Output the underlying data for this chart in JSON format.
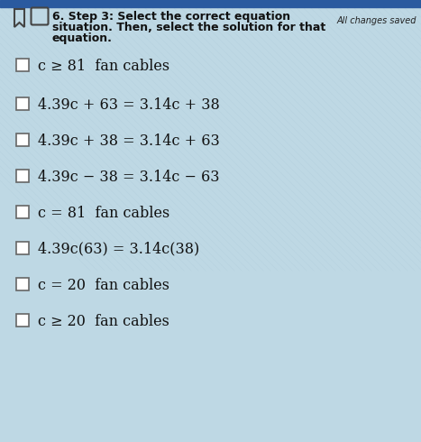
{
  "bg_color": "#bed8e4",
  "top_bar_color": "#2a5a9f",
  "title_line1": "6. Step 3: Select the correct equation",
  "title_line2": "situation. Then, select the solution for that",
  "title_line3": "equation.",
  "all_changes_saved": "All changes saved",
  "options": [
    "c ≥ 81  fan cables",
    "4.39c + 63 = 3.14c + 38",
    "4.39c + 38 = 3.14c + 63",
    "4.39c − 38 = 3.14c − 63",
    "c = 81  fan cables",
    "4.39c(63) = 3.14c(38)",
    "c = 20  fan cables",
    "c ≥ 20  fan cables"
  ],
  "checkbox_color": "#ffffff",
  "checkbox_edge": "#666666",
  "text_color": "#111111",
  "header_text_color": "#111111",
  "crosshatch_color": "#cce4f0",
  "crosshatch_alpha": 0.5
}
